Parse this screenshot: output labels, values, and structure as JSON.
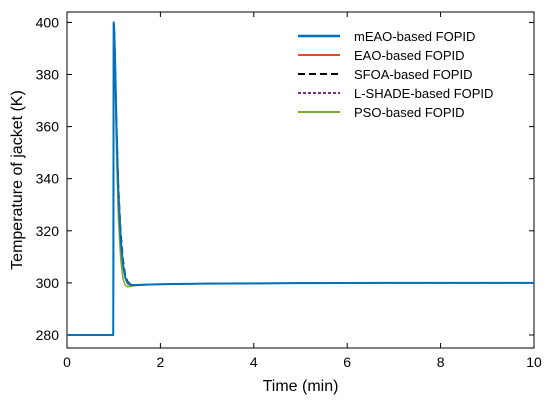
{
  "chart_data": {
    "type": "line",
    "title": "",
    "xlabel": "Time (min)",
    "ylabel": "Temperature of jacket (K)",
    "xlim": [
      0,
      10
    ],
    "ylim": [
      275,
      404
    ],
    "xticks": [
      0,
      2,
      4,
      6,
      8,
      10
    ],
    "yticks": [
      280,
      300,
      320,
      340,
      360,
      380,
      400
    ],
    "xtick_labels": [
      "0",
      "2",
      "4",
      "6",
      "8",
      "10"
    ],
    "ytick_labels": [
      "280",
      "300",
      "320",
      "340",
      "360",
      "380",
      "400"
    ],
    "grid": false,
    "legend_position": "top-right",
    "series": [
      {
        "name": "mEAO-based FOPID",
        "color": "#0072BD",
        "dash": "solid",
        "x": [
          0,
          0.99,
          1.0,
          1.01,
          1.03,
          1.06,
          1.1,
          1.15,
          1.2,
          1.25,
          1.3,
          1.35,
          1.4,
          1.5,
          1.6,
          1.8,
          2.0,
          2.5,
          3.0,
          4.0,
          5.0,
          6.0,
          7.0,
          8.0,
          9.0,
          10.0
        ],
        "y": [
          280,
          280,
          400,
          398,
          385,
          360,
          335,
          317,
          307,
          302,
          300,
          299.4,
          299.2,
          299.2,
          299.3,
          299.4,
          299.5,
          299.6,
          299.7,
          299.8,
          299.9,
          299.95,
          300,
          300,
          300,
          300
        ]
      },
      {
        "name": "EAO-based FOPID",
        "color": "#D95319",
        "dash": "solid",
        "x": [
          0,
          0.99,
          1.0,
          1.01,
          1.03,
          1.06,
          1.1,
          1.15,
          1.2,
          1.25,
          1.3,
          1.35,
          1.4,
          1.5,
          1.6,
          1.8,
          2.0,
          2.5,
          3.0,
          4.0,
          5.0,
          6.0,
          7.0,
          8.0,
          9.0,
          10.0
        ],
        "y": [
          280,
          280,
          400,
          398,
          384,
          358,
          333,
          315,
          306,
          301.5,
          299.6,
          299.1,
          299.0,
          299.1,
          299.2,
          299.4,
          299.5,
          299.6,
          299.7,
          299.8,
          299.9,
          299.95,
          300,
          300,
          300,
          300
        ]
      },
      {
        "name": "SFOA-based FOPID",
        "color": "#000000",
        "dash": "dashed",
        "x": [
          0,
          0.99,
          1.0,
          1.01,
          1.03,
          1.06,
          1.1,
          1.15,
          1.2,
          1.25,
          1.3,
          1.35,
          1.4,
          1.5,
          1.6,
          1.8,
          2.0,
          2.5,
          3.0,
          4.0,
          5.0,
          6.0,
          7.0,
          8.0,
          9.0,
          10.0
        ],
        "y": [
          280,
          280,
          400,
          398,
          387,
          363,
          338,
          320,
          309,
          303,
          300.5,
          299.6,
          299.3,
          299.2,
          299.3,
          299.4,
          299.5,
          299.6,
          299.7,
          299.8,
          299.9,
          299.95,
          300,
          300,
          300,
          300
        ]
      },
      {
        "name": "L-SHADE-based FOPID",
        "color": "#7E2F8E",
        "dash": "dotted",
        "x": [
          0,
          0.99,
          1.0,
          1.01,
          1.03,
          1.06,
          1.1,
          1.15,
          1.2,
          1.25,
          1.3,
          1.35,
          1.4,
          1.5,
          1.6,
          1.8,
          2.0,
          2.5,
          3.0,
          4.0,
          5.0,
          6.0,
          7.0,
          8.0,
          9.0,
          10.0
        ],
        "y": [
          280,
          280,
          400,
          398,
          385,
          359,
          334,
          316,
          306.5,
          301.8,
          299.8,
          299.2,
          299.1,
          299.1,
          299.2,
          299.4,
          299.5,
          299.6,
          299.7,
          299.8,
          299.9,
          299.95,
          300,
          300,
          300,
          300
        ]
      },
      {
        "name": "PSO-based FOPID",
        "color": "#77AC30",
        "dash": "solid",
        "x": [
          0,
          0.99,
          1.0,
          1.01,
          1.03,
          1.06,
          1.1,
          1.15,
          1.2,
          1.25,
          1.3,
          1.35,
          1.4,
          1.5,
          1.6,
          1.8,
          2.0,
          2.5,
          3.0,
          4.0,
          5.0,
          6.0,
          7.0,
          8.0,
          9.0,
          10.0
        ],
        "y": [
          280,
          280,
          400,
          399,
          380,
          350,
          325,
          309,
          301.5,
          299,
          298.5,
          298.6,
          298.8,
          299.0,
          299.2,
          299.4,
          299.5,
          299.6,
          299.7,
          299.8,
          299.9,
          299.95,
          300,
          300,
          300,
          300
        ]
      }
    ]
  }
}
